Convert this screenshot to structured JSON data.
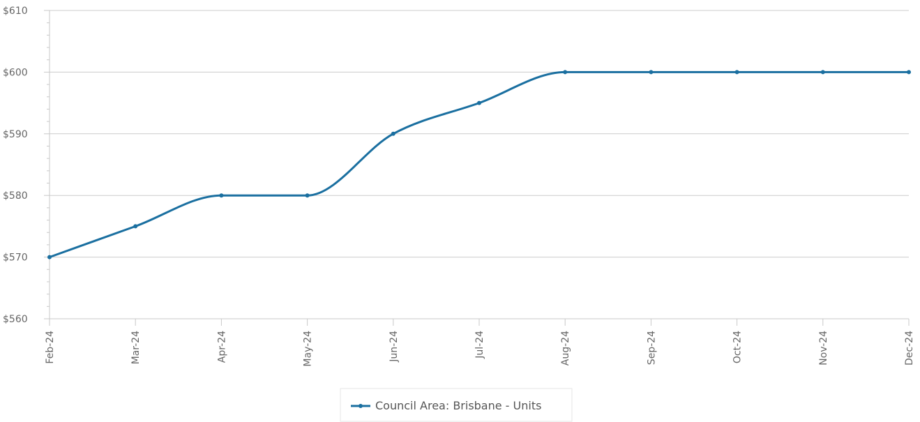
{
  "chart_data": {
    "type": "line",
    "title": "",
    "xlabel": "",
    "ylabel": "",
    "categories": [
      "Feb-24",
      "Mar-24",
      "Apr-24",
      "May-24",
      "Jun-24",
      "Jul-24",
      "Aug-24",
      "Sep-24",
      "Oct-24",
      "Nov-24",
      "Dec-24"
    ],
    "series": [
      {
        "name": "Council Area: Brisbane - Units",
        "values": [
          570,
          575,
          580,
          580,
          590,
          595,
          600,
          600,
          600,
          600,
          600
        ],
        "color": "#1a6fa0"
      }
    ],
    "ylim": [
      560,
      610
    ],
    "yticks": [
      560,
      570,
      580,
      590,
      600,
      610
    ],
    "ytick_labels": [
      "$560",
      "$570",
      "$580",
      "$590",
      "$600",
      "$610"
    ],
    "grid": true,
    "legend_position": "bottom-center",
    "curve": "smooth"
  }
}
